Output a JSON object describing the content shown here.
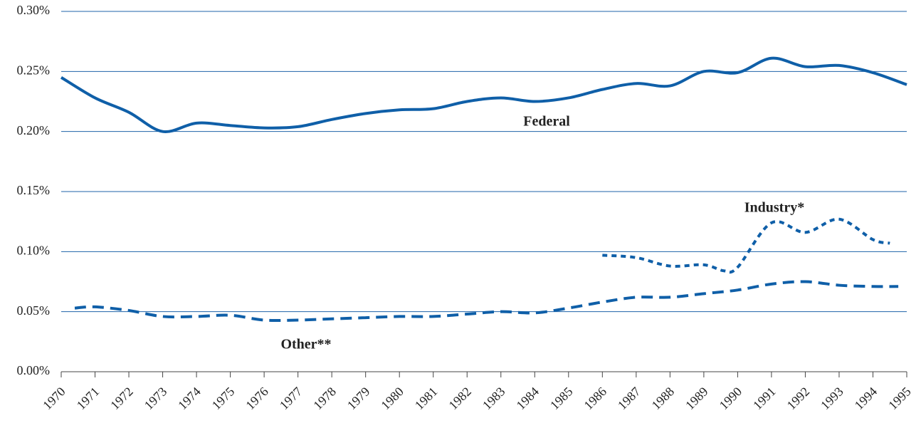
{
  "chart_data": {
    "type": "line",
    "annotations": [
      "Federal",
      "Industry*",
      "Other**"
    ],
    "xlim": [
      1970,
      1995
    ],
    "xticks": [
      1970,
      1971,
      1972,
      1973,
      1974,
      1975,
      1976,
      1977,
      1978,
      1979,
      1980,
      1981,
      1982,
      1983,
      1984,
      1985,
      1986,
      1987,
      1988,
      1989,
      1990,
      1991,
      1992,
      1993,
      1994,
      1995
    ],
    "ylim": [
      0,
      0.3
    ],
    "yticks": [
      {
        "value": 0,
        "label": "0.00%"
      },
      {
        "value": 0.05,
        "label": "0.05%"
      },
      {
        "value": 0.1,
        "label": "0.10%"
      },
      {
        "value": 0.15,
        "label": "0.15%"
      },
      {
        "value": 0.2,
        "label": "0.20%"
      },
      {
        "value": 0.25,
        "label": "0.25%"
      },
      {
        "value": 0.3,
        "label": "0.30%"
      }
    ],
    "grid": true,
    "series": [
      {
        "name": "Federal",
        "color": "#0f5fa8",
        "dash": "none",
        "x": [
          1970,
          1971,
          1972,
          1973,
          1974,
          1975,
          1976,
          1977,
          1978,
          1979,
          1980,
          1981,
          1982,
          1983,
          1984,
          1985,
          1986,
          1987,
          1988,
          1989,
          1990,
          1991,
          1992,
          1993,
          1994,
          1995
        ],
        "values": [
          0.245,
          0.228,
          0.216,
          0.2,
          0.207,
          0.205,
          0.203,
          0.204,
          0.21,
          0.215,
          0.218,
          0.219,
          0.225,
          0.228,
          0.225,
          0.228,
          0.235,
          0.24,
          0.238,
          0.25,
          0.249,
          0.261,
          0.254,
          0.255,
          0.249,
          0.239
        ]
      },
      {
        "name": "Industry*",
        "color": "#0f5fa8",
        "dash": "7,6",
        "x": [
          1986,
          1987,
          1988,
          1989,
          1989.6,
          1990,
          1991,
          1992,
          1993,
          1994,
          1994.5
        ],
        "values": [
          0.097,
          0.095,
          0.088,
          0.089,
          0.084,
          0.087,
          0.124,
          0.116,
          0.127,
          0.11,
          0.107
        ]
      },
      {
        "name": "Other**",
        "color": "#0f5fa8",
        "dash": "16,9",
        "x": [
          1970.4,
          1971,
          1972,
          1973,
          1974,
          1975,
          1976,
          1977,
          1978,
          1979,
          1980,
          1981,
          1982,
          1983,
          1984,
          1985,
          1986,
          1987,
          1988,
          1989,
          1990,
          1991,
          1992,
          1993,
          1994,
          1994.75
        ],
        "values": [
          0.053,
          0.054,
          0.051,
          0.046,
          0.046,
          0.047,
          0.043,
          0.043,
          0.044,
          0.045,
          0.046,
          0.046,
          0.048,
          0.05,
          0.049,
          0.053,
          0.058,
          0.062,
          0.062,
          0.065,
          0.068,
          0.073,
          0.075,
          0.072,
          0.071,
          0.071
        ]
      }
    ]
  }
}
